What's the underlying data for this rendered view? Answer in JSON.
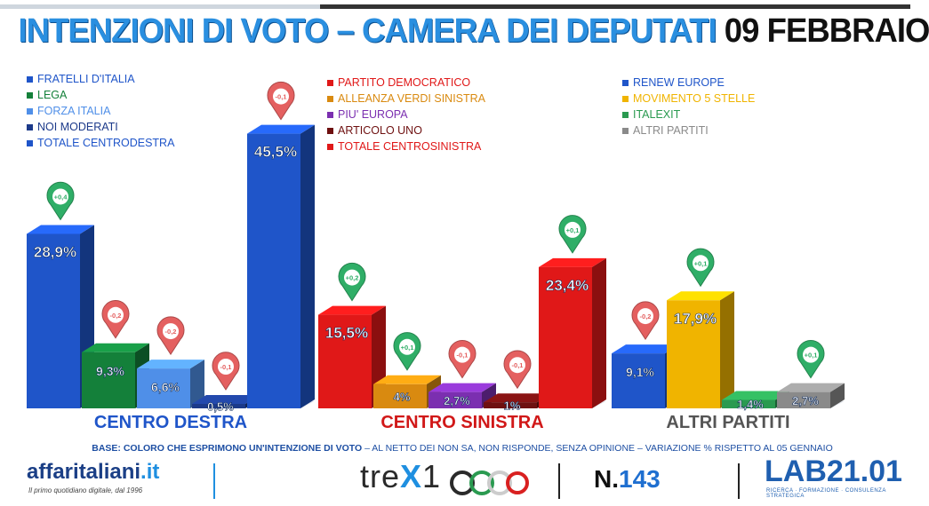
{
  "header": {
    "title_main": "INTENZIONI DI VOTO – CAMERA DEI DEPUTATI",
    "title_date": "09 FEBBRAIO"
  },
  "legends": {
    "left": [
      "FRATELLI D'ITALIA",
      "LEGA",
      "FORZA ITALIA",
      "NOI MODERATI",
      "TOTALE CENTRODESTRA"
    ],
    "middle": [
      "PARTITO DEMOCRATICO",
      "ALLEANZA VERDI SINISTRA",
      "PIU' EUROPA",
      "ARTICOLO UNO",
      "TOTALE CENTROSINISTRA"
    ],
    "right": [
      "RENEW EUROPE",
      "MOVIMENTO 5 STELLE",
      "ITALEXIT",
      "ALTRI PARTITI"
    ]
  },
  "chart_data": {
    "type": "bar",
    "groups": [
      {
        "label": "CENTRO DESTRA",
        "bars": [
          {
            "name": "FRATELLI D'ITALIA",
            "value": 28.9,
            "label": "28,9%",
            "change": "+0,4",
            "color": "#1f55c9"
          },
          {
            "name": "LEGA",
            "value": 9.3,
            "label": "9,3%",
            "change": "-0,2",
            "color": "#14803a"
          },
          {
            "name": "FORZA ITALIA",
            "value": 6.6,
            "label": "6,6%",
            "change": "-0,2",
            "color": "#4f8fe8"
          },
          {
            "name": "NOI MODERATI",
            "value": 0.5,
            "label": "0,5%",
            "change": "-0,1",
            "color": "#1c3a8a"
          },
          {
            "name": "TOTALE CENTRODESTRA",
            "value": 45.5,
            "label": "45,5%",
            "change": "-0,1",
            "color": "#1f55c9"
          }
        ]
      },
      {
        "label": "CENTRO SINISTRA",
        "bars": [
          {
            "name": "PARTITO DEMOCRATICO",
            "value": 15.5,
            "label": "15,5%",
            "change": "+0,2",
            "color": "#e01818"
          },
          {
            "name": "ALLEANZA VERDI SINISTRA",
            "value": 4,
            "label": "4%",
            "change": "+0,1",
            "color": "#d98a10"
          },
          {
            "name": "PIU' EUROPA",
            "value": 2.7,
            "label": "2,7%",
            "change": "-0,1",
            "color": "#7b2fb0"
          },
          {
            "name": "ARTICOLO UNO",
            "value": 1,
            "label": "1%",
            "change": "-0,1",
            "color": "#6e1010"
          },
          {
            "name": "TOTALE CENTROSINISTRA",
            "value": 23.4,
            "label": "23,4%",
            "change": "+0,1",
            "color": "#e01818"
          }
        ]
      },
      {
        "label": "ALTRI PARTITI",
        "bars": [
          {
            "name": "RENEW EUROPE",
            "value": 9.1,
            "label": "9,1%",
            "change": "-0,2",
            "color": "#1f55c9"
          },
          {
            "name": "MOVIMENTO 5 STELLE",
            "value": 17.9,
            "label": "17,9%",
            "change": "+0,1",
            "color": "#f0b400"
          },
          {
            "name": "ITALEXIT",
            "value": 1.4,
            "label": "1,4%",
            "change": "",
            "color": "#2a9a50"
          },
          {
            "name": "ALTRI PARTITI",
            "value": 2.7,
            "label": "2,7%",
            "change": "+0,1",
            "color": "#8a8a8a"
          }
        ]
      }
    ],
    "title": "INTENZIONI DI VOTO – CAMERA DEI DEPUTATI 09 FEBBRAIO",
    "unit": "%"
  },
  "footer": {
    "base_bold": "BASE: COLORO CHE ESPRIMONO UN'INTENZIONE DI VOTO",
    "base_rest": "– AL NETTO DEI NON SA, NON RISPONDE, SENZA OPINIONE – VARIAZIONE % RISPETTO AL 05 GENNAIO",
    "affari_main": "affaritaliani",
    "affari_ext": ".it",
    "affari_sub": "Il primo quotidiano digitale, dal 1996",
    "trex_a": "tre",
    "trex_k": "X",
    "trex_b": "1",
    "issue_prefix": "N.",
    "issue_number": "143",
    "lab_name": "LAB21.01",
    "lab_sub": "RICERCA · FORMAZIONE · CONSULENZA STRATEGICA"
  },
  "colors": {
    "positive_pin": "#2fae67",
    "negative_pin": "#e46060",
    "title_blue": "#2a8fe0"
  }
}
